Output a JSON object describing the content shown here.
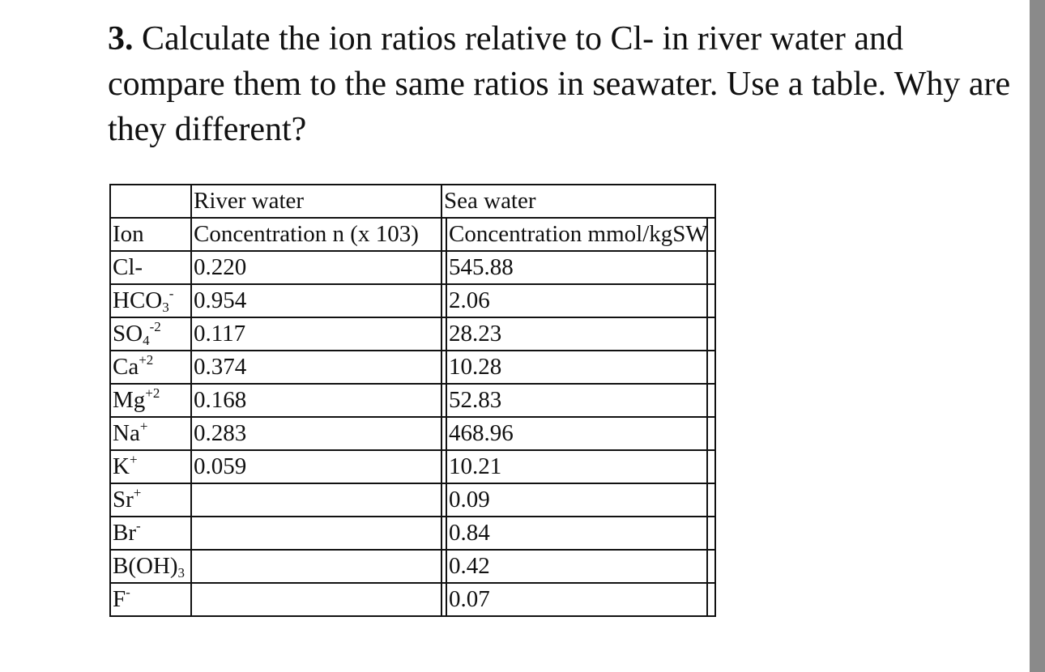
{
  "question": {
    "number": "3.",
    "text": "Calculate the ion ratios relative to Cl- in river water and compare them to the same ratios in seawater. Use a table. Why are they different?"
  },
  "table": {
    "group_headers": {
      "ion": "",
      "river": "River water",
      "sea": "Sea water"
    },
    "headers": {
      "ion": "Ion",
      "river": "Concentration n (x 103)",
      "sea": "Concentration mmol/kgSW"
    },
    "rows": [
      {
        "ion": {
          "base": "Cl-",
          "sub": "",
          "sup": ""
        },
        "river": "0.220",
        "sea": "545.88"
      },
      {
        "ion": {
          "base": "HCO",
          "sub": "3",
          "sup": "-"
        },
        "river": "0.954",
        "sea": "2.06"
      },
      {
        "ion": {
          "base": "SO",
          "sub": "4",
          "sup": "-2"
        },
        "river": "0.117",
        "sea": "28.23"
      },
      {
        "ion": {
          "base": "Ca",
          "sub": "",
          "sup": "+2"
        },
        "river": "0.374",
        "sea": "10.28"
      },
      {
        "ion": {
          "base": "Mg",
          "sub": "",
          "sup": "+2"
        },
        "river": "0.168",
        "sea": "52.83"
      },
      {
        "ion": {
          "base": "Na",
          "sub": "",
          "sup": "+"
        },
        "river": "0.283",
        "sea": "468.96"
      },
      {
        "ion": {
          "base": "K",
          "sub": "",
          "sup": "+"
        },
        "river": "0.059",
        "sea": "10.21"
      },
      {
        "ion": {
          "base": "Sr",
          "sub": "",
          "sup": "+"
        },
        "river": "",
        "sea": "0.09"
      },
      {
        "ion": {
          "base": "Br",
          "sub": "",
          "sup": "-"
        },
        "river": "",
        "sea": "0.84"
      },
      {
        "ion": {
          "base": "B(OH)",
          "sub": "3",
          "sup": ""
        },
        "river": "",
        "sea": "0.42"
      },
      {
        "ion": {
          "base": "F",
          "sub": "",
          "sup": "-"
        },
        "river": "",
        "sea": "0.07"
      }
    ]
  }
}
